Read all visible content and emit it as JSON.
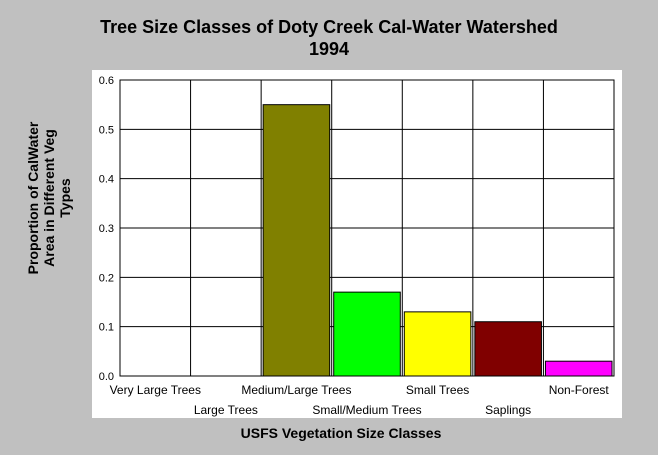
{
  "chart_data": {
    "type": "bar",
    "title": "Tree Size Classes of Doty Creek Cal-Water Watershed",
    "subtitle": "1994",
    "xlabel": "USFS Vegetation Size Classes",
    "ylabel_lines": [
      "Proportion of CalWater",
      "Area in Different Veg",
      "Types"
    ],
    "categories": [
      "Very Large Trees",
      "Large Trees",
      "Medium/Large Trees",
      "Small/Medium Trees",
      "Small Trees",
      "Saplings",
      "Non-Forest"
    ],
    "values": [
      0,
      0,
      0.55,
      0.17,
      0.13,
      0.11,
      0.03
    ],
    "colors": [
      "#808000",
      "#808000",
      "#808000",
      "#00ff00",
      "#ffff00",
      "#800000",
      "#ff00ff"
    ],
    "ylim": [
      0,
      0.6
    ],
    "yticks": [
      "0.0",
      "0.1",
      "0.2",
      "0.3",
      "0.4",
      "0.5",
      "0.6"
    ],
    "grid": true,
    "legend": "none"
  }
}
